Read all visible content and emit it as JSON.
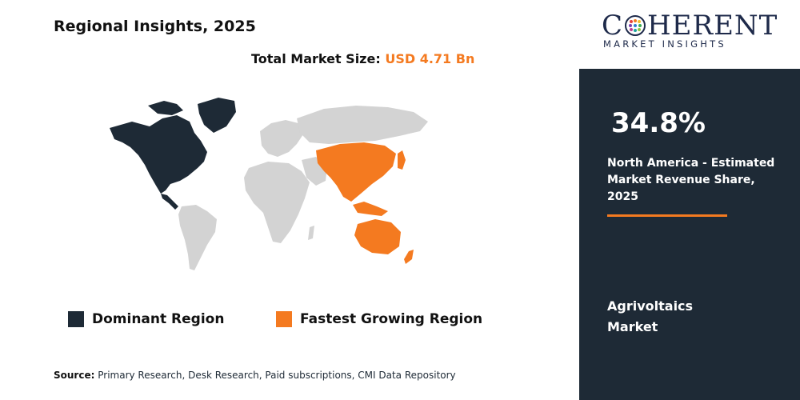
{
  "header": {
    "title": "Regional Insights, 2025",
    "market_size_label": "Total Market Size:",
    "market_size_value": "USD 4.71 Bn"
  },
  "legend": {
    "dominant_label": "Dominant Region",
    "fastest_label": "Fastest Growing Region"
  },
  "source": {
    "label": "Source:",
    "text": "Primary Research, Desk Research, Paid subscriptions, CMI Data Repository"
  },
  "logo": {
    "main_left": "C",
    "main_right": "HERENT",
    "sub": "MARKET INSIGHTS"
  },
  "panel": {
    "stat_value": "34.8%",
    "stat_description": "North America - Estimated Market Revenue Share, 2025",
    "market_name": "Agrivoltaics Market"
  },
  "colors": {
    "dominant": "#1e2a36",
    "fastest": "#f47a20",
    "other": "#d3d3d3",
    "panel": "#1e2a36",
    "accent": "#f47a20"
  }
}
